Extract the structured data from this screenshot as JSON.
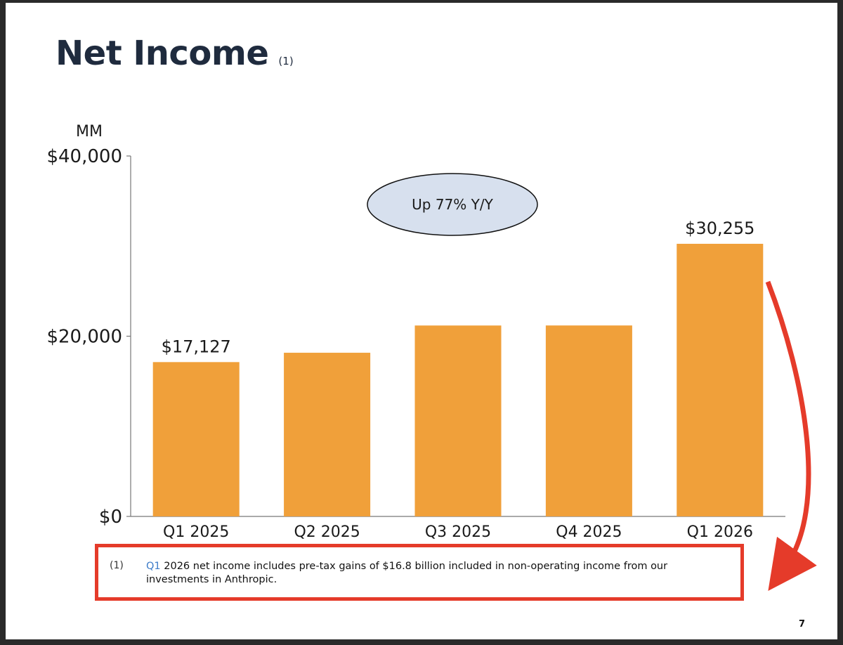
{
  "title": "Net Income",
  "title_note": "(1)",
  "callout": "Up 77% Y/Y",
  "footnote": {
    "marker": "(1)",
    "quarter": "Q1",
    "text": " 2026 net income includes pre-tax gains of $16.8 billion included in non-operating income from our investments in Anthropic."
  },
  "page_number": "7",
  "colors": {
    "bar": "#f0a03a",
    "title": "#1f2b3e",
    "highlight": "#e53b2a",
    "callout_fill": "#d7e0ee"
  },
  "chart_data": {
    "type": "bar",
    "unit_label": "MM",
    "categories": [
      "Q1 2025",
      "Q2 2025",
      "Q3 2025",
      "Q4 2025",
      "Q1 2026"
    ],
    "values": [
      17127,
      18164,
      21187,
      21192,
      30255
    ],
    "data_labels": [
      "$17,127",
      null,
      null,
      null,
      "$30,255"
    ],
    "yticks": [
      {
        "value": 0,
        "label": "$0"
      },
      {
        "value": 20000,
        "label": "$20,000"
      },
      {
        "value": 40000,
        "label": "$40,000"
      }
    ],
    "ylim": [
      0,
      40000
    ],
    "grid": false
  }
}
